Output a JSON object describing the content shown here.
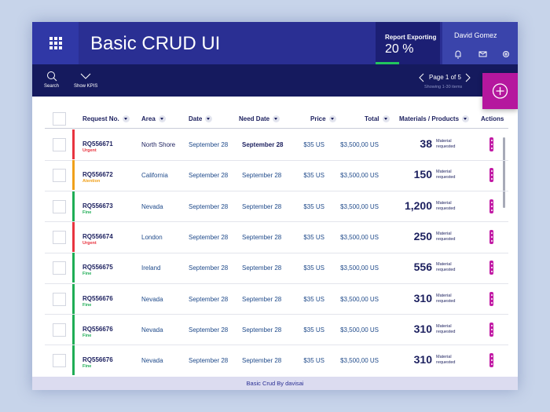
{
  "header": {
    "title": "Basic CRUD UI",
    "export_label": "Report Exporting",
    "export_value": "20 %",
    "user_name": "David Gomez"
  },
  "toolbar": {
    "search": "Search",
    "show_kpis": "Show KPIS",
    "page": "Page 1 of 5",
    "showing": "Showing 1-30 items"
  },
  "table": {
    "columns": [
      "Request No.",
      "Area",
      "Date",
      "Need Date",
      "Price",
      "Total",
      "Materials / Products",
      "Actions"
    ],
    "rows": [
      {
        "request": "RQ556671",
        "status": "Urgent",
        "status_color": "#e8343f",
        "area": "North Shore",
        "date": "September 28",
        "need_date": "September 28",
        "price": "$35 US",
        "total": "$3,500,00 US",
        "quantity": "38",
        "material": "Material requested"
      },
      {
        "request": "RQ556672",
        "status": "Atention",
        "status_color": "#f0a01a",
        "area": "California",
        "date": "September 28",
        "need_date": "September 28",
        "price": "$35 US",
        "total": "$3,500,00 US",
        "quantity": "150",
        "material": "Material requested"
      },
      {
        "request": "RQ556673",
        "status": "Fine",
        "status_color": "#1fad55",
        "area": "Nevada",
        "date": "September 28",
        "need_date": "September 28",
        "price": "$35 US",
        "total": "$3,500,00 US",
        "quantity": "1,200",
        "material": "Material requested"
      },
      {
        "request": "RQ556674",
        "status": "Urgent",
        "status_color": "#e8343f",
        "area": "London",
        "date": "September 28",
        "need_date": "September 28",
        "price": "$35 US",
        "total": "$3,500,00 US",
        "quantity": "250",
        "material": "Material requested"
      },
      {
        "request": "RQ556675",
        "status": "Fine",
        "status_color": "#1fad55",
        "area": "Ireland",
        "date": "September 28",
        "need_date": "September 28",
        "price": "$35 US",
        "total": "$3,500,00 US",
        "quantity": "556",
        "material": "Material requested"
      },
      {
        "request": "RQ556676",
        "status": "Fine",
        "status_color": "#1fad55",
        "area": "Nevada",
        "date": "September 28",
        "need_date": "September 28",
        "price": "$35 US",
        "total": "$3,500,00 US",
        "quantity": "310",
        "material": "Material requested"
      },
      {
        "request": "RQ556676",
        "status": "Fine",
        "status_color": "#1fad55",
        "area": "Nevada",
        "date": "September 28",
        "need_date": "September 28",
        "price": "$35 US",
        "total": "$3,500,00 US",
        "quantity": "310",
        "material": "Material requested"
      },
      {
        "request": "RQ556676",
        "status": "Fine",
        "status_color": "#1fad55",
        "area": "Nevada",
        "date": "September 28",
        "need_date": "September 28",
        "price": "$35 US",
        "total": "$3,500,00 US",
        "quantity": "310",
        "material": "Material requested"
      }
    ]
  },
  "footer": "Basic Crud By davisai"
}
